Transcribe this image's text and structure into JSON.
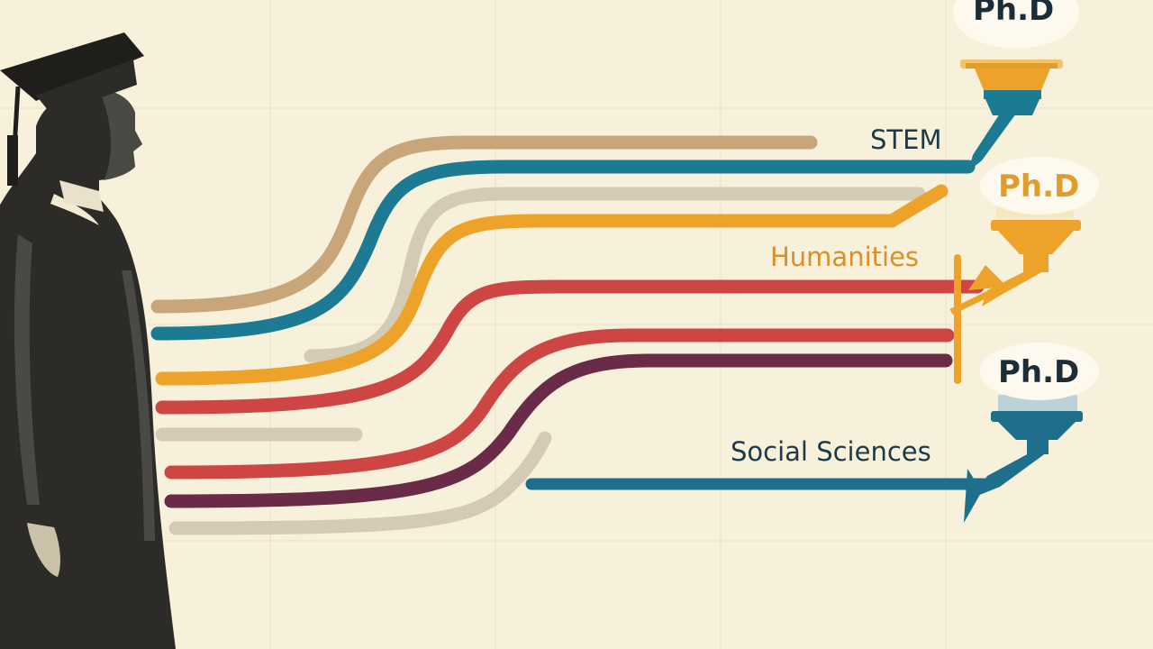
{
  "destinations": [
    {
      "degree": "Ph.D",
      "field": "STEM",
      "color": "#1c7a93",
      "degree_color": "#1b2d38",
      "field_color": "#1c3a48"
    },
    {
      "degree": "Ph.D",
      "field": "Humanities",
      "color": "#eda22a",
      "degree_color": "#e39b2a",
      "field_color": "#d99028"
    },
    {
      "degree": "Ph.D",
      "field": "Social Sciences",
      "color": "#1d6f8c",
      "degree_color": "#1b2d38",
      "field_color": "#1c3a48"
    }
  ],
  "palette": {
    "background": "#f7f0da",
    "grid": "#e9dfc6",
    "tan": "#c9a67a",
    "teal": "#1c7a93",
    "beige": "#d4cbb4",
    "orange": "#eda22a",
    "red": "#cd4644",
    "plum": "#6a2b48",
    "navy": "#1d6f8c",
    "graduate_robe": "#2c2b27"
  },
  "icons": [
    "graduate-silhouette",
    "mortarboard-icon",
    "funnel-icon"
  ]
}
